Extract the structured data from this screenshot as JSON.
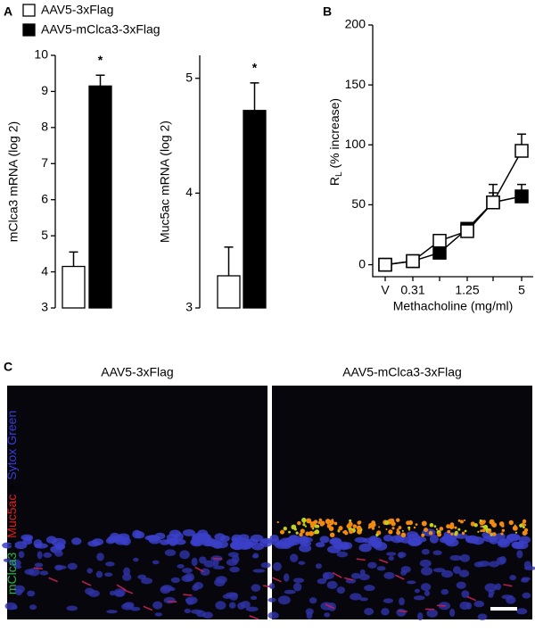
{
  "panel_labels": [
    "A",
    "B",
    "C"
  ],
  "chart_data": [
    {
      "type": "bar",
      "y_label": "mClca3 mRNA (log 2)",
      "annotation": "*",
      "categories": [
        null
      ],
      "series": [
        {
          "name": "AAV5-3xFlag",
          "color": "#ffffff",
          "values": [
            4.15
          ],
          "errors": [
            0.4
          ]
        },
        {
          "name": "AAV5-mClca3-3xFlag",
          "color": "#000000",
          "values": [
            9.15
          ],
          "errors": [
            0.3
          ]
        }
      ],
      "ylim": [
        3,
        10
      ],
      "yticks": [
        3,
        4,
        5,
        6,
        7,
        8,
        9,
        10
      ]
    },
    {
      "type": "bar",
      "y_label": "Muc5ac mRNA (log 2)",
      "annotation": "*",
      "categories": [
        null
      ],
      "series": [
        {
          "color": "#ffffff",
          "values": [
            3.28
          ],
          "errors": [
            0.25
          ]
        },
        {
          "color": "#000000",
          "values": [
            4.72
          ],
          "errors": [
            0.24
          ]
        }
      ],
      "ylim": [
        3,
        5.2
      ],
      "yticks": [
        3,
        4,
        5
      ]
    },
    {
      "type": "line",
      "y_label": {
        "main": "R",
        "sub": "L",
        "rest": " (% increase)"
      },
      "x_label": "Methacholine (mg/ml)",
      "categories": [
        "V",
        "0.31",
        null,
        "1.25",
        null,
        "5"
      ],
      "series": [
        {
          "color": "#000000",
          "values": [
            0,
            3,
            10,
            30,
            52,
            57
          ],
          "errors": [
            1,
            1,
            2,
            3,
            8,
            10
          ]
        },
        {
          "color": "#ffffff",
          "values": [
            0,
            3,
            20,
            28,
            52,
            95
          ],
          "errors": [
            1,
            1,
            3,
            4,
            15,
            14
          ]
        }
      ],
      "ylim": [
        -10,
        200
      ],
      "yticks": [
        0,
        50,
        100,
        150,
        200
      ]
    }
  ],
  "images": {
    "titles": [
      "AAV5-3xFlag",
      "AAV5-mClca3-3xFlag"
    ],
    "stain_label": [
      {
        "text": "mClca3",
        "color": "#2fb34a"
      },
      {
        "text": " + ",
        "color": "#000000"
      },
      {
        "text": "Muc5ac",
        "color": "#e02020"
      },
      {
        "text": " + ",
        "color": "#000000"
      },
      {
        "text": "Sytox Green",
        "color": "#3a3ad8"
      }
    ]
  }
}
